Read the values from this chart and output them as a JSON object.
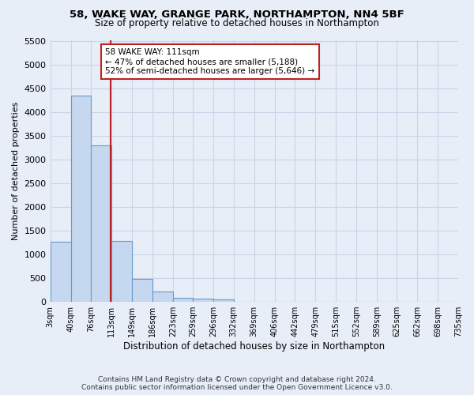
{
  "title": "58, WAKE WAY, GRANGE PARK, NORTHAMPTON, NN4 5BF",
  "subtitle": "Size of property relative to detached houses in Northampton",
  "xlabel": "Distribution of detached houses by size in Northampton",
  "ylabel": "Number of detached properties",
  "footer_line1": "Contains HM Land Registry data © Crown copyright and database right 2024.",
  "footer_line2": "Contains public sector information licensed under the Open Government Licence v3.0.",
  "annotation_line1": "58 WAKE WAY: 111sqm",
  "annotation_line2": "← 47% of detached houses are smaller (5,188)",
  "annotation_line3": "52% of semi-detached houses are larger (5,646) →",
  "property_size": 111,
  "bar_edges": [
    3,
    40,
    76,
    113,
    149,
    186,
    223,
    259,
    296,
    332,
    369,
    406,
    442,
    479,
    515,
    552,
    589,
    625,
    662,
    698,
    735
  ],
  "bar_heights": [
    1270,
    4340,
    3300,
    1280,
    490,
    215,
    90,
    65,
    55,
    0,
    0,
    0,
    0,
    0,
    0,
    0,
    0,
    0,
    0,
    0
  ],
  "bar_color": "#c5d8ef",
  "bar_edge_color": "#6699cc",
  "vline_color": "#bb2222",
  "vline_x": 111,
  "annotation_box_color": "#bb2222",
  "background_color": "#e8eef8",
  "grid_color": "#c8d4e8",
  "ylim": [
    0,
    5500
  ],
  "yticks": [
    0,
    500,
    1000,
    1500,
    2000,
    2500,
    3000,
    3500,
    4000,
    4500,
    5000,
    5500
  ]
}
